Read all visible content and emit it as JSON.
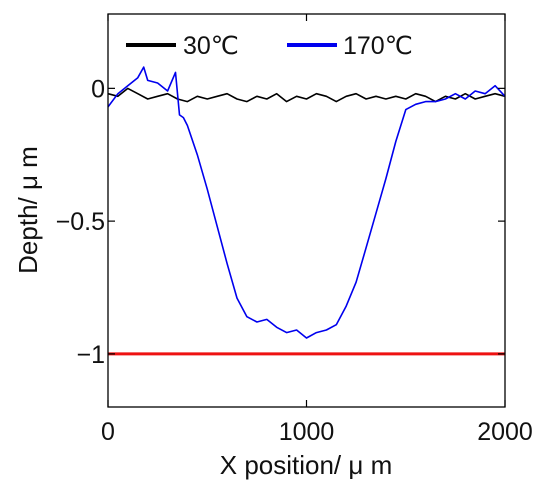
{
  "chart_data": {
    "type": "line",
    "title": "",
    "xlabel": "X position/ μ m",
    "ylabel": "Depth/ μ m",
    "xlim": [
      0,
      2000
    ],
    "ylim": [
      -1.2,
      0.28
    ],
    "x_ticks": [
      0,
      1000,
      2000
    ],
    "x_tick_labels": [
      "0",
      "1000",
      "2000"
    ],
    "y_ticks": [
      0,
      -0.5,
      -1
    ],
    "y_tick_labels": [
      "0",
      "−0.5",
      "−1"
    ],
    "grid": false,
    "legend_position": "top",
    "series": [
      {
        "name": "30℃",
        "color": "#000000",
        "x": [
          0,
          50,
          100,
          150,
          200,
          250,
          300,
          350,
          400,
          450,
          500,
          550,
          600,
          650,
          700,
          750,
          800,
          850,
          900,
          950,
          1000,
          1050,
          1100,
          1150,
          1200,
          1250,
          1300,
          1350,
          1400,
          1450,
          1500,
          1550,
          1600,
          1650,
          1700,
          1750,
          1800,
          1850,
          1900,
          1950,
          2000
        ],
        "y": [
          -0.02,
          -0.03,
          0.0,
          -0.02,
          -0.04,
          -0.03,
          -0.02,
          -0.04,
          -0.05,
          -0.03,
          -0.04,
          -0.03,
          -0.02,
          -0.04,
          -0.05,
          -0.03,
          -0.04,
          -0.02,
          -0.05,
          -0.03,
          -0.04,
          -0.02,
          -0.03,
          -0.05,
          -0.03,
          -0.02,
          -0.04,
          -0.03,
          -0.04,
          -0.03,
          -0.04,
          -0.02,
          -0.03,
          -0.05,
          -0.03,
          -0.04,
          -0.02,
          -0.04,
          -0.03,
          -0.02,
          -0.03
        ]
      },
      {
        "name": "170℃",
        "color": "#0000ee",
        "x": [
          0,
          50,
          100,
          150,
          180,
          200,
          250,
          300,
          340,
          360,
          380,
          400,
          450,
          500,
          550,
          600,
          650,
          700,
          750,
          800,
          850,
          900,
          950,
          1000,
          1050,
          1100,
          1150,
          1200,
          1250,
          1300,
          1350,
          1400,
          1450,
          1500,
          1550,
          1600,
          1650,
          1700,
          1750,
          1800,
          1850,
          1900,
          1950,
          2000
        ],
        "y": [
          -0.07,
          -0.02,
          0.01,
          0.04,
          0.08,
          0.03,
          0.02,
          -0.01,
          0.06,
          -0.1,
          -0.11,
          -0.14,
          -0.25,
          -0.38,
          -0.52,
          -0.66,
          -0.79,
          -0.86,
          -0.88,
          -0.87,
          -0.9,
          -0.92,
          -0.91,
          -0.94,
          -0.92,
          -0.91,
          -0.89,
          -0.82,
          -0.73,
          -0.6,
          -0.47,
          -0.34,
          -0.2,
          -0.08,
          -0.06,
          -0.05,
          -0.05,
          -0.04,
          -0.02,
          -0.04,
          -0.01,
          -0.02,
          0.01,
          -0.03
        ]
      }
    ],
    "reference_line": {
      "y": -1,
      "color": "#ee1111"
    }
  }
}
